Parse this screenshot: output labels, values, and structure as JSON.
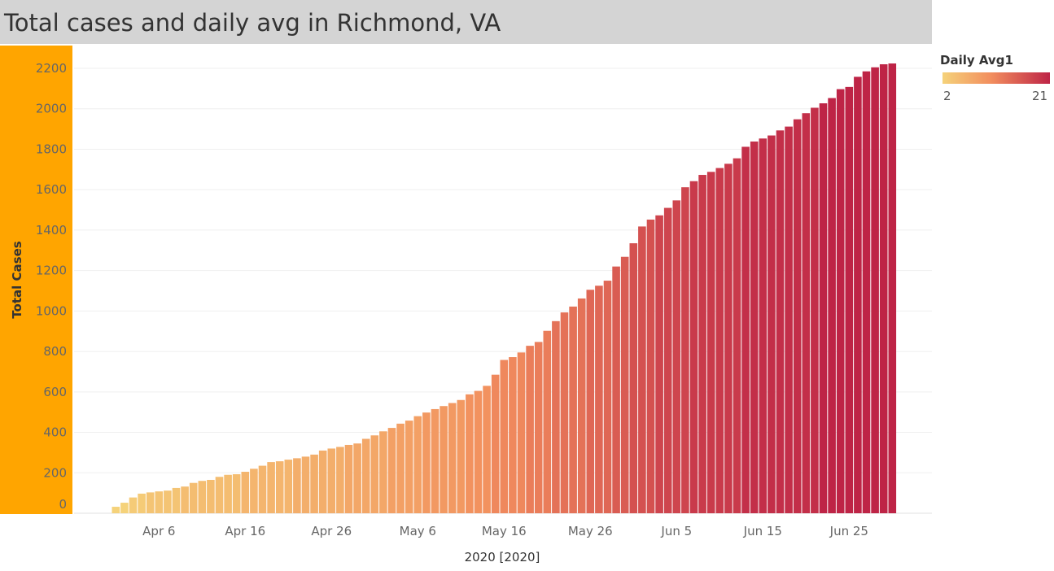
{
  "title": "Total cases and daily avg in Richmond, VA",
  "colors": {
    "title_bg": "#d4d4d4",
    "yaxis_panel": "#ffa500",
    "color_low": "#f5d27a",
    "color_mid": "#f28e5e",
    "color_high": "#be2446"
  },
  "legend": {
    "title": "Daily Avg1",
    "min_label": "2",
    "max_label": "21",
    "min_value": 2,
    "max_value": 21
  },
  "chart_data": {
    "type": "bar",
    "title": "Total cases and daily avg in Richmond, VA",
    "ylabel": "Total Cases",
    "xlabel": "2020 [2020]",
    "ylim": [
      0,
      2200
    ],
    "yticks": [
      0,
      200,
      400,
      600,
      800,
      1000,
      1200,
      1400,
      1600,
      1800,
      2000,
      2200
    ],
    "grid": true,
    "legend_position": "top-right",
    "x_tick_labels": [
      "Apr 6",
      "Apr 16",
      "Apr 26",
      "May 6",
      "May 16",
      "May 26",
      "Jun 5",
      "Jun 15",
      "Jun 25"
    ],
    "x_tick_dates": [
      "2020-04-06",
      "2020-04-16",
      "2020-04-26",
      "2020-05-06",
      "2020-05-16",
      "2020-05-26",
      "2020-06-05",
      "2020-06-15",
      "2020-06-25"
    ],
    "dates": [
      "2020-04-01",
      "2020-04-02",
      "2020-04-03",
      "2020-04-04",
      "2020-04-05",
      "2020-04-06",
      "2020-04-07",
      "2020-04-08",
      "2020-04-09",
      "2020-04-10",
      "2020-04-11",
      "2020-04-12",
      "2020-04-13",
      "2020-04-14",
      "2020-04-15",
      "2020-04-16",
      "2020-04-17",
      "2020-04-18",
      "2020-04-19",
      "2020-04-20",
      "2020-04-21",
      "2020-04-22",
      "2020-04-23",
      "2020-04-24",
      "2020-04-25",
      "2020-04-26",
      "2020-04-27",
      "2020-04-28",
      "2020-04-29",
      "2020-04-30",
      "2020-05-01",
      "2020-05-02",
      "2020-05-03",
      "2020-05-04",
      "2020-05-05",
      "2020-05-06",
      "2020-05-07",
      "2020-05-08",
      "2020-05-09",
      "2020-05-10",
      "2020-05-11",
      "2020-05-12",
      "2020-05-13",
      "2020-05-14",
      "2020-05-15",
      "2020-05-16",
      "2020-05-17",
      "2020-05-18",
      "2020-05-19",
      "2020-05-20",
      "2020-05-21",
      "2020-05-22",
      "2020-05-23",
      "2020-05-24",
      "2020-05-25",
      "2020-05-26",
      "2020-05-27",
      "2020-05-28",
      "2020-05-29",
      "2020-05-30",
      "2020-05-31",
      "2020-06-01",
      "2020-06-02",
      "2020-06-03",
      "2020-06-04",
      "2020-06-05",
      "2020-06-06",
      "2020-06-07",
      "2020-06-08",
      "2020-06-09",
      "2020-06-10",
      "2020-06-11",
      "2020-06-12",
      "2020-06-13",
      "2020-06-14",
      "2020-06-15",
      "2020-06-16",
      "2020-06-17",
      "2020-06-18",
      "2020-06-19",
      "2020-06-20",
      "2020-06-21",
      "2020-06-22",
      "2020-06-23",
      "2020-06-24",
      "2020-06-25",
      "2020-06-26",
      "2020-06-27",
      "2020-06-28",
      "2020-06-29",
      "2020-06-30"
    ],
    "total_cases": [
      32,
      52,
      78,
      97,
      103,
      108,
      112,
      125,
      132,
      150,
      160,
      165,
      180,
      190,
      193,
      205,
      220,
      235,
      253,
      257,
      265,
      272,
      280,
      290,
      310,
      320,
      328,
      338,
      345,
      368,
      385,
      405,
      422,
      443,
      458,
      480,
      498,
      515,
      530,
      545,
      560,
      588,
      605,
      630,
      685,
      758,
      772,
      795,
      828,
      847,
      902,
      950,
      993,
      1022,
      1062,
      1105,
      1125,
      1150,
      1220,
      1268,
      1335,
      1418,
      1452,
      1473,
      1510,
      1547,
      1612,
      1642,
      1673,
      1688,
      1707,
      1728,
      1755,
      1812,
      1838,
      1853,
      1868,
      1893,
      1912,
      1948,
      1978,
      2005,
      2027,
      2053,
      2097,
      2108,
      2158,
      2185,
      2205,
      2220,
      2224
    ],
    "daily_avg": [
      2,
      2,
      3,
      3,
      4,
      4,
      4,
      4,
      5,
      5,
      5,
      5,
      5,
      5,
      5,
      6,
      6,
      6,
      6,
      6,
      6,
      7,
      7,
      7,
      7,
      7,
      7,
      8,
      8,
      8,
      8,
      8,
      9,
      9,
      9,
      9,
      10,
      10,
      10,
      10,
      10,
      11,
      11,
      11,
      12,
      12,
      12,
      12,
      13,
      13,
      13,
      14,
      14,
      14,
      14,
      15,
      15,
      15,
      16,
      16,
      17,
      17,
      17,
      18,
      18,
      18,
      18,
      19,
      19,
      19,
      19,
      19,
      19,
      20,
      20,
      20,
      20,
      20,
      20,
      20,
      20,
      20,
      21,
      21,
      21,
      21,
      21,
      21,
      21,
      21,
      21
    ]
  }
}
